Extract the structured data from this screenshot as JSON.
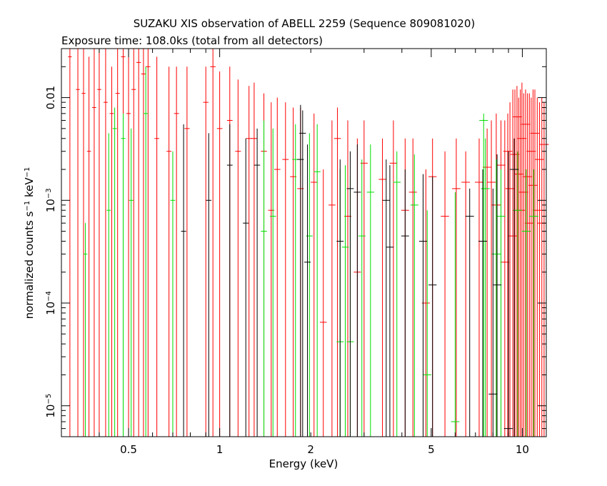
{
  "chart_data": {
    "type": "scatter",
    "title": "SUZAKU XIS observation of ABELL 2259 (Sequence 809081020)",
    "subtitle": "Exposure time: 108.0ks (total from all detectors)",
    "xlabel": "Energy (keV)",
    "ylabel": "normalized counts s-1 keV-1",
    "ylabel_parts": [
      "normalized counts s",
      "−1",
      " keV",
      "−1"
    ],
    "x_scale": "log",
    "y_scale": "log",
    "xlim": [
      0.3,
      12
    ],
    "ylim": [
      5e-06,
      0.03
    ],
    "grid": false,
    "x_ticks": [
      {
        "value": 0.5,
        "label": "0.5"
      },
      {
        "value": 1,
        "label": "1"
      },
      {
        "value": 2,
        "label": "2"
      },
      {
        "value": 5,
        "label": "5"
      },
      {
        "value": 10,
        "label": "10"
      }
    ],
    "y_ticks": [
      {
        "value": 0.01,
        "label": "0.01",
        "base": "",
        "exp": ""
      },
      {
        "value": 0.001,
        "label": "",
        "base": "10",
        "exp": "−3"
      },
      {
        "value": 0.0001,
        "label": "",
        "base": "10",
        "exp": "−4"
      },
      {
        "value": 1e-05,
        "label": "",
        "base": "10",
        "exp": "−5"
      }
    ],
    "series": [
      {
        "color": "#ff0000",
        "points": [
          [
            0.32,
            0.025,
            0.0,
            0.035
          ],
          [
            0.34,
            0.012,
            0.0,
            0.03
          ],
          [
            0.355,
            0.011,
            0.0,
            0.035
          ],
          [
            0.37,
            0.003,
            0.0,
            0.025
          ],
          [
            0.385,
            0.008,
            0.0,
            0.03
          ],
          [
            0.4,
            0.012,
            0.0,
            0.03
          ],
          [
            0.42,
            0.009,
            0.0,
            0.03
          ],
          [
            0.44,
            0.007,
            0.0,
            0.02
          ],
          [
            0.46,
            0.011,
            0.0,
            0.03
          ],
          [
            0.48,
            0.025,
            0.0,
            0.035
          ],
          [
            0.5,
            0.007,
            0.0,
            0.03
          ],
          [
            0.52,
            0.012,
            0.0,
            0.035
          ],
          [
            0.54,
            0.022,
            0.0,
            0.035
          ],
          [
            0.56,
            0.017,
            0.0,
            0.035
          ],
          [
            0.58,
            0.02,
            0.0,
            0.035
          ],
          [
            0.62,
            0.004,
            0.0,
            0.025
          ],
          [
            0.68,
            0.003,
            0.0,
            0.02
          ],
          [
            0.72,
            0.007,
            0.0,
            0.02
          ],
          [
            0.78,
            0.005,
            0.0,
            0.02
          ],
          [
            0.9,
            0.009,
            0.0,
            0.02
          ],
          [
            0.95,
            0.02,
            0.0,
            0.03
          ],
          [
            1.0,
            0.005,
            0.0,
            0.018
          ],
          [
            1.08,
            0.006,
            0.0,
            0.02
          ],
          [
            1.15,
            0.003,
            0.0,
            0.015
          ],
          [
            1.25,
            0.004,
            0.0,
            0.013
          ],
          [
            1.3,
            0.004,
            0.0,
            0.014
          ],
          [
            1.4,
            0.003,
            0.0,
            0.011
          ],
          [
            1.48,
            0.0008,
            0.0,
            0.009
          ],
          [
            1.55,
            0.002,
            0.0,
            0.01
          ],
          [
            1.65,
            0.0025,
            0.0,
            0.009
          ],
          [
            1.75,
            0.0017,
            0.0,
            0.008
          ],
          [
            1.85,
            0.0013,
            0.0,
            0.008
          ],
          [
            2.05,
            0.0015,
            0.0,
            0.007
          ],
          [
            2.2,
            6.5e-05,
            0.0,
            0.002
          ],
          [
            2.35,
            0.0009,
            0.0,
            0.006
          ],
          [
            2.45,
            0.004,
            0.0,
            0.008
          ],
          [
            2.65,
            0.0007,
            0.0,
            0.006
          ],
          [
            2.85,
            0.0002,
            0.0,
            0.004
          ],
          [
            3.0,
            0.0023,
            0.0,
            0.006
          ],
          [
            3.45,
            0.0016,
            0.0,
            0.004
          ],
          [
            3.75,
            0.0023,
            0.0,
            0.006
          ],
          [
            4.1,
            0.0008,
            0.0,
            0.004
          ],
          [
            4.35,
            0.0012,
            0.0,
            0.004
          ],
          [
            4.8,
            0.0001,
            0.0,
            0.002
          ],
          [
            5.05,
            0.0017,
            0.0,
            0.004
          ],
          [
            5.55,
            0.0007,
            0.0,
            0.003
          ],
          [
            6.05,
            0.0013,
            0.0,
            0.004
          ],
          [
            6.5,
            0.0015,
            0.0,
            0.003
          ],
          [
            7.2,
            0.0015,
            0.0,
            0.004
          ],
          [
            7.65,
            0.0021,
            0.0,
            0.005
          ],
          [
            7.9,
            0.0015,
            0.0,
            0.006
          ],
          [
            8.2,
            0.0009,
            0.0,
            0.007
          ],
          [
            8.5,
            0.0022,
            0.0,
            0.006
          ],
          [
            8.75,
            0.00025,
            0.0,
            0.006
          ],
          [
            8.95,
            0.003,
            0.0,
            0.007
          ],
          [
            9.1,
            0.0013,
            0.0,
            0.009
          ],
          [
            9.3,
            0.00045,
            0.0,
            0.012
          ],
          [
            9.45,
            0.0028,
            0.0,
            0.012
          ],
          [
            9.6,
            0.0065,
            0.0,
            0.013
          ],
          [
            9.72,
            0.0018,
            0.0,
            0.01
          ],
          [
            9.85,
            0.0008,
            0.0,
            0.012
          ],
          [
            9.97,
            0.004,
            0.0,
            0.014
          ],
          [
            10.1,
            0.0012,
            0.0,
            0.011
          ],
          [
            10.25,
            0.0055,
            0.0,
            0.012
          ],
          [
            10.4,
            0.0017,
            0.0,
            0.011
          ],
          [
            10.55,
            0.0006,
            0.0,
            0.011
          ],
          [
            10.7,
            0.003,
            0.0,
            0.01
          ],
          [
            10.85,
            0.0014,
            0.0,
            0.012
          ],
          [
            11.0,
            0.0045,
            0.0,
            0.012
          ],
          [
            11.2,
            0.0008,
            0.0,
            0.01
          ],
          [
            11.4,
            0.0025,
            0.0,
            0.009
          ],
          [
            11.6,
            0.0006,
            0.0,
            0.01
          ],
          [
            11.8,
            0.0035,
            0.0,
            0.009
          ]
        ]
      },
      {
        "color": "#00dd00",
        "points": [
          [
            0.36,
            0.0003,
            0.0,
            0.0006
          ],
          [
            0.43,
            0.0008,
            0.0,
            0.0045
          ],
          [
            0.45,
            0.005,
            0.0,
            0.008
          ],
          [
            0.48,
            0.004,
            0.0,
            0.007
          ],
          [
            0.51,
            0.001,
            0.0,
            0.005
          ],
          [
            0.57,
            0.007,
            0.0,
            0.02
          ],
          [
            0.7,
            0.001,
            0.0,
            0.003
          ],
          [
            1.4,
            0.0005,
            0.0,
            0.006
          ],
          [
            1.5,
            0.0007,
            0.0,
            0.005
          ],
          [
            1.78,
            0.0025,
            0.0,
            0.0055
          ],
          [
            1.98,
            0.00045,
            0.0,
            0.0045
          ],
          [
            2.1,
            0.0019,
            0.0,
            0.0055
          ],
          [
            2.5,
            4.2e-05,
            0.0,
            0.002
          ],
          [
            2.6,
            0.00035,
            0.0,
            0.0022
          ],
          [
            2.7,
            4.2e-05,
            0.0,
            0.0017
          ],
          [
            2.95,
            0.00045,
            0.0,
            0.0025
          ],
          [
            3.15,
            0.0012,
            0.0,
            0.0035
          ],
          [
            3.85,
            0.0015,
            0.0,
            0.003
          ],
          [
            4.4,
            0.0009,
            0.0,
            0.0028
          ],
          [
            4.85,
            2e-05,
            0.0,
            0.0008
          ],
          [
            6.0,
            7e-06,
            0.0,
            0.0012
          ],
          [
            7.45,
            0.006,
            0.0,
            0.007
          ],
          [
            7.55,
            0.0013,
            0.0,
            0.004
          ],
          [
            8.2,
            0.0003,
            0.0,
            0.0025
          ],
          [
            8.5,
            0.0007,
            0.0,
            0.002
          ],
          [
            9.65,
            0.0008,
            0.0,
            0.003
          ],
          [
            10.3,
            0.0005,
            0.0,
            0.002
          ],
          [
            10.9,
            0.0007,
            0.0,
            0.002
          ]
        ]
      },
      {
        "color": "#000000",
        "points": [
          [
            0.76,
            0.0005,
            0.0,
            0.0055
          ],
          [
            0.92,
            0.001,
            0.0,
            0.0045
          ],
          [
            1.08,
            0.0022,
            0.0,
            0.0055
          ],
          [
            1.22,
            0.0006,
            0.0,
            0.004
          ],
          [
            1.33,
            0.0022,
            0.0,
            0.005
          ],
          [
            1.85,
            0.0025,
            0.0,
            0.0085
          ],
          [
            1.88,
            0.0045,
            0.0,
            0.0075
          ],
          [
            1.95,
            0.00025,
            0.0,
            0.0035
          ],
          [
            2.5,
            0.0004,
            0.0,
            0.0025
          ],
          [
            2.7,
            0.0013,
            0.0,
            0.003
          ],
          [
            2.85,
            0.0012,
            0.0,
            0.0035
          ],
          [
            3.55,
            0.001,
            0.0,
            0.0025
          ],
          [
            3.65,
            0.00035,
            0.0,
            0.0022
          ],
          [
            4.1,
            0.00045,
            0.0,
            0.002
          ],
          [
            4.7,
            0.0004,
            0.0,
            0.0018
          ],
          [
            5.05,
            0.00015,
            0.0,
            0.0017
          ],
          [
            6.7,
            0.0007,
            0.0,
            0.0013
          ],
          [
            7.4,
            0.0004,
            0.0,
            0.002
          ],
          [
            8.0,
            1.3e-05,
            0.0,
            0.0013
          ],
          [
            8.25,
            0.00015,
            0.0,
            0.0028
          ],
          [
            9.0,
            6e-06,
            0.0,
            0.003
          ],
          [
            9.4,
            0.002,
            0.0,
            0.004
          ]
        ]
      }
    ]
  }
}
